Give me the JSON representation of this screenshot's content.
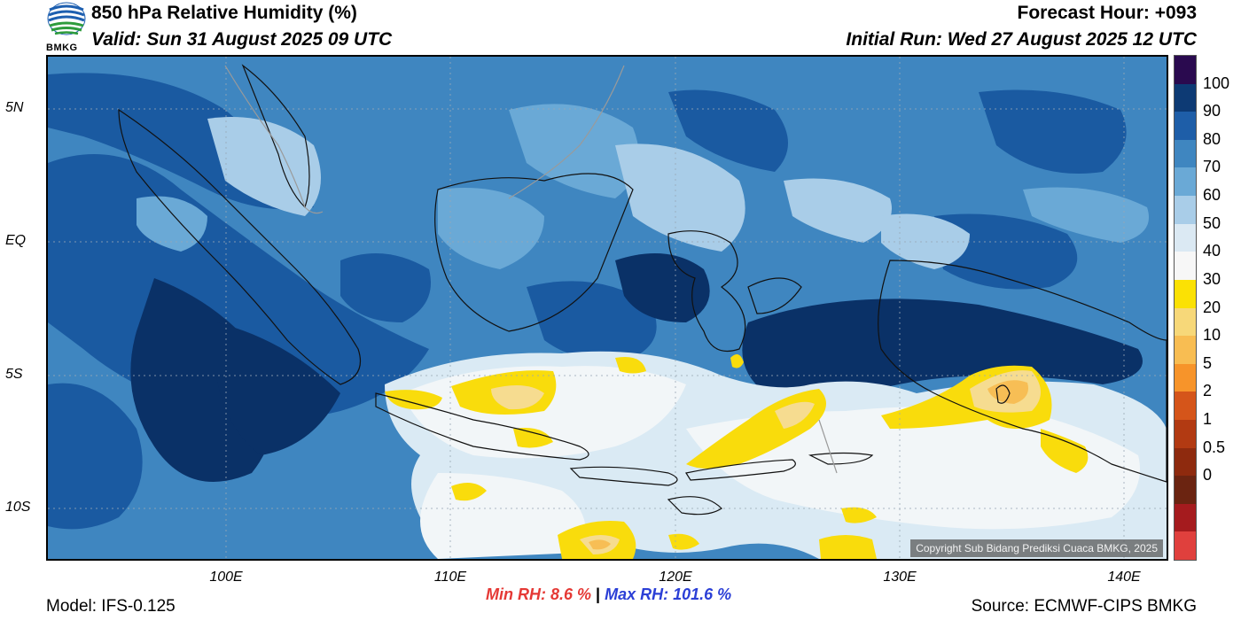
{
  "header": {
    "title": "850 hPa Relative Humidity (%)",
    "valid": "Valid: Sun 31 August 2025 09 UTC",
    "forecast_hour": "Forecast Hour: +093",
    "initial_run": "Initial Run: Wed 27 August 2025 12 UTC",
    "logo_text": "BMKG"
  },
  "map": {
    "region": "Indonesia / Maritime Continent",
    "lat_labels": [
      "5N",
      "EQ",
      "5S",
      "10S"
    ],
    "lon_labels": [
      "100E",
      "110E",
      "120E",
      "130E",
      "140E"
    ],
    "copyright": "Copyright Sub Bidang Prediksi Cuaca BMKG, 2025",
    "colors": {
      "wettest": "#0a3167",
      "very_wet": "#1a5aa1",
      "wet": "#3f86c0",
      "moist": "#6aa9d6",
      "mid": "#a9cde8",
      "dryish": "#daeaf4",
      "dry": "#f2f6f8",
      "yellow": "#f9dc0c",
      "pale_orange": "#f6dc90",
      "orange": "#f7be55"
    }
  },
  "colorbar": {
    "labels": [
      "100",
      "90",
      "80",
      "70",
      "60",
      "50",
      "40",
      "30",
      "20",
      "10",
      "5",
      "2",
      "1",
      "0.5",
      "0"
    ],
    "colors": [
      "#2a0a4f",
      "#0d3a74",
      "#1e5ea8",
      "#3f86c0",
      "#6aa9d6",
      "#a9cde8",
      "#dbe9f3",
      "#f7f7f7",
      "#fbe104",
      "#f7d879",
      "#f8bd52",
      "#f7942a",
      "#d5551a",
      "#b23a12",
      "#8e2a0e",
      "#6b2411",
      "#a51b1e",
      "#e0403d"
    ]
  },
  "stats": {
    "min_rh": "Min RH:   8.6 %",
    "separator": "|",
    "max_rh": "Max RH: 101.6 %"
  },
  "footer": {
    "model": "Model: IFS-0.125",
    "source": "Source: ECMWF-CIPS BMKG"
  }
}
